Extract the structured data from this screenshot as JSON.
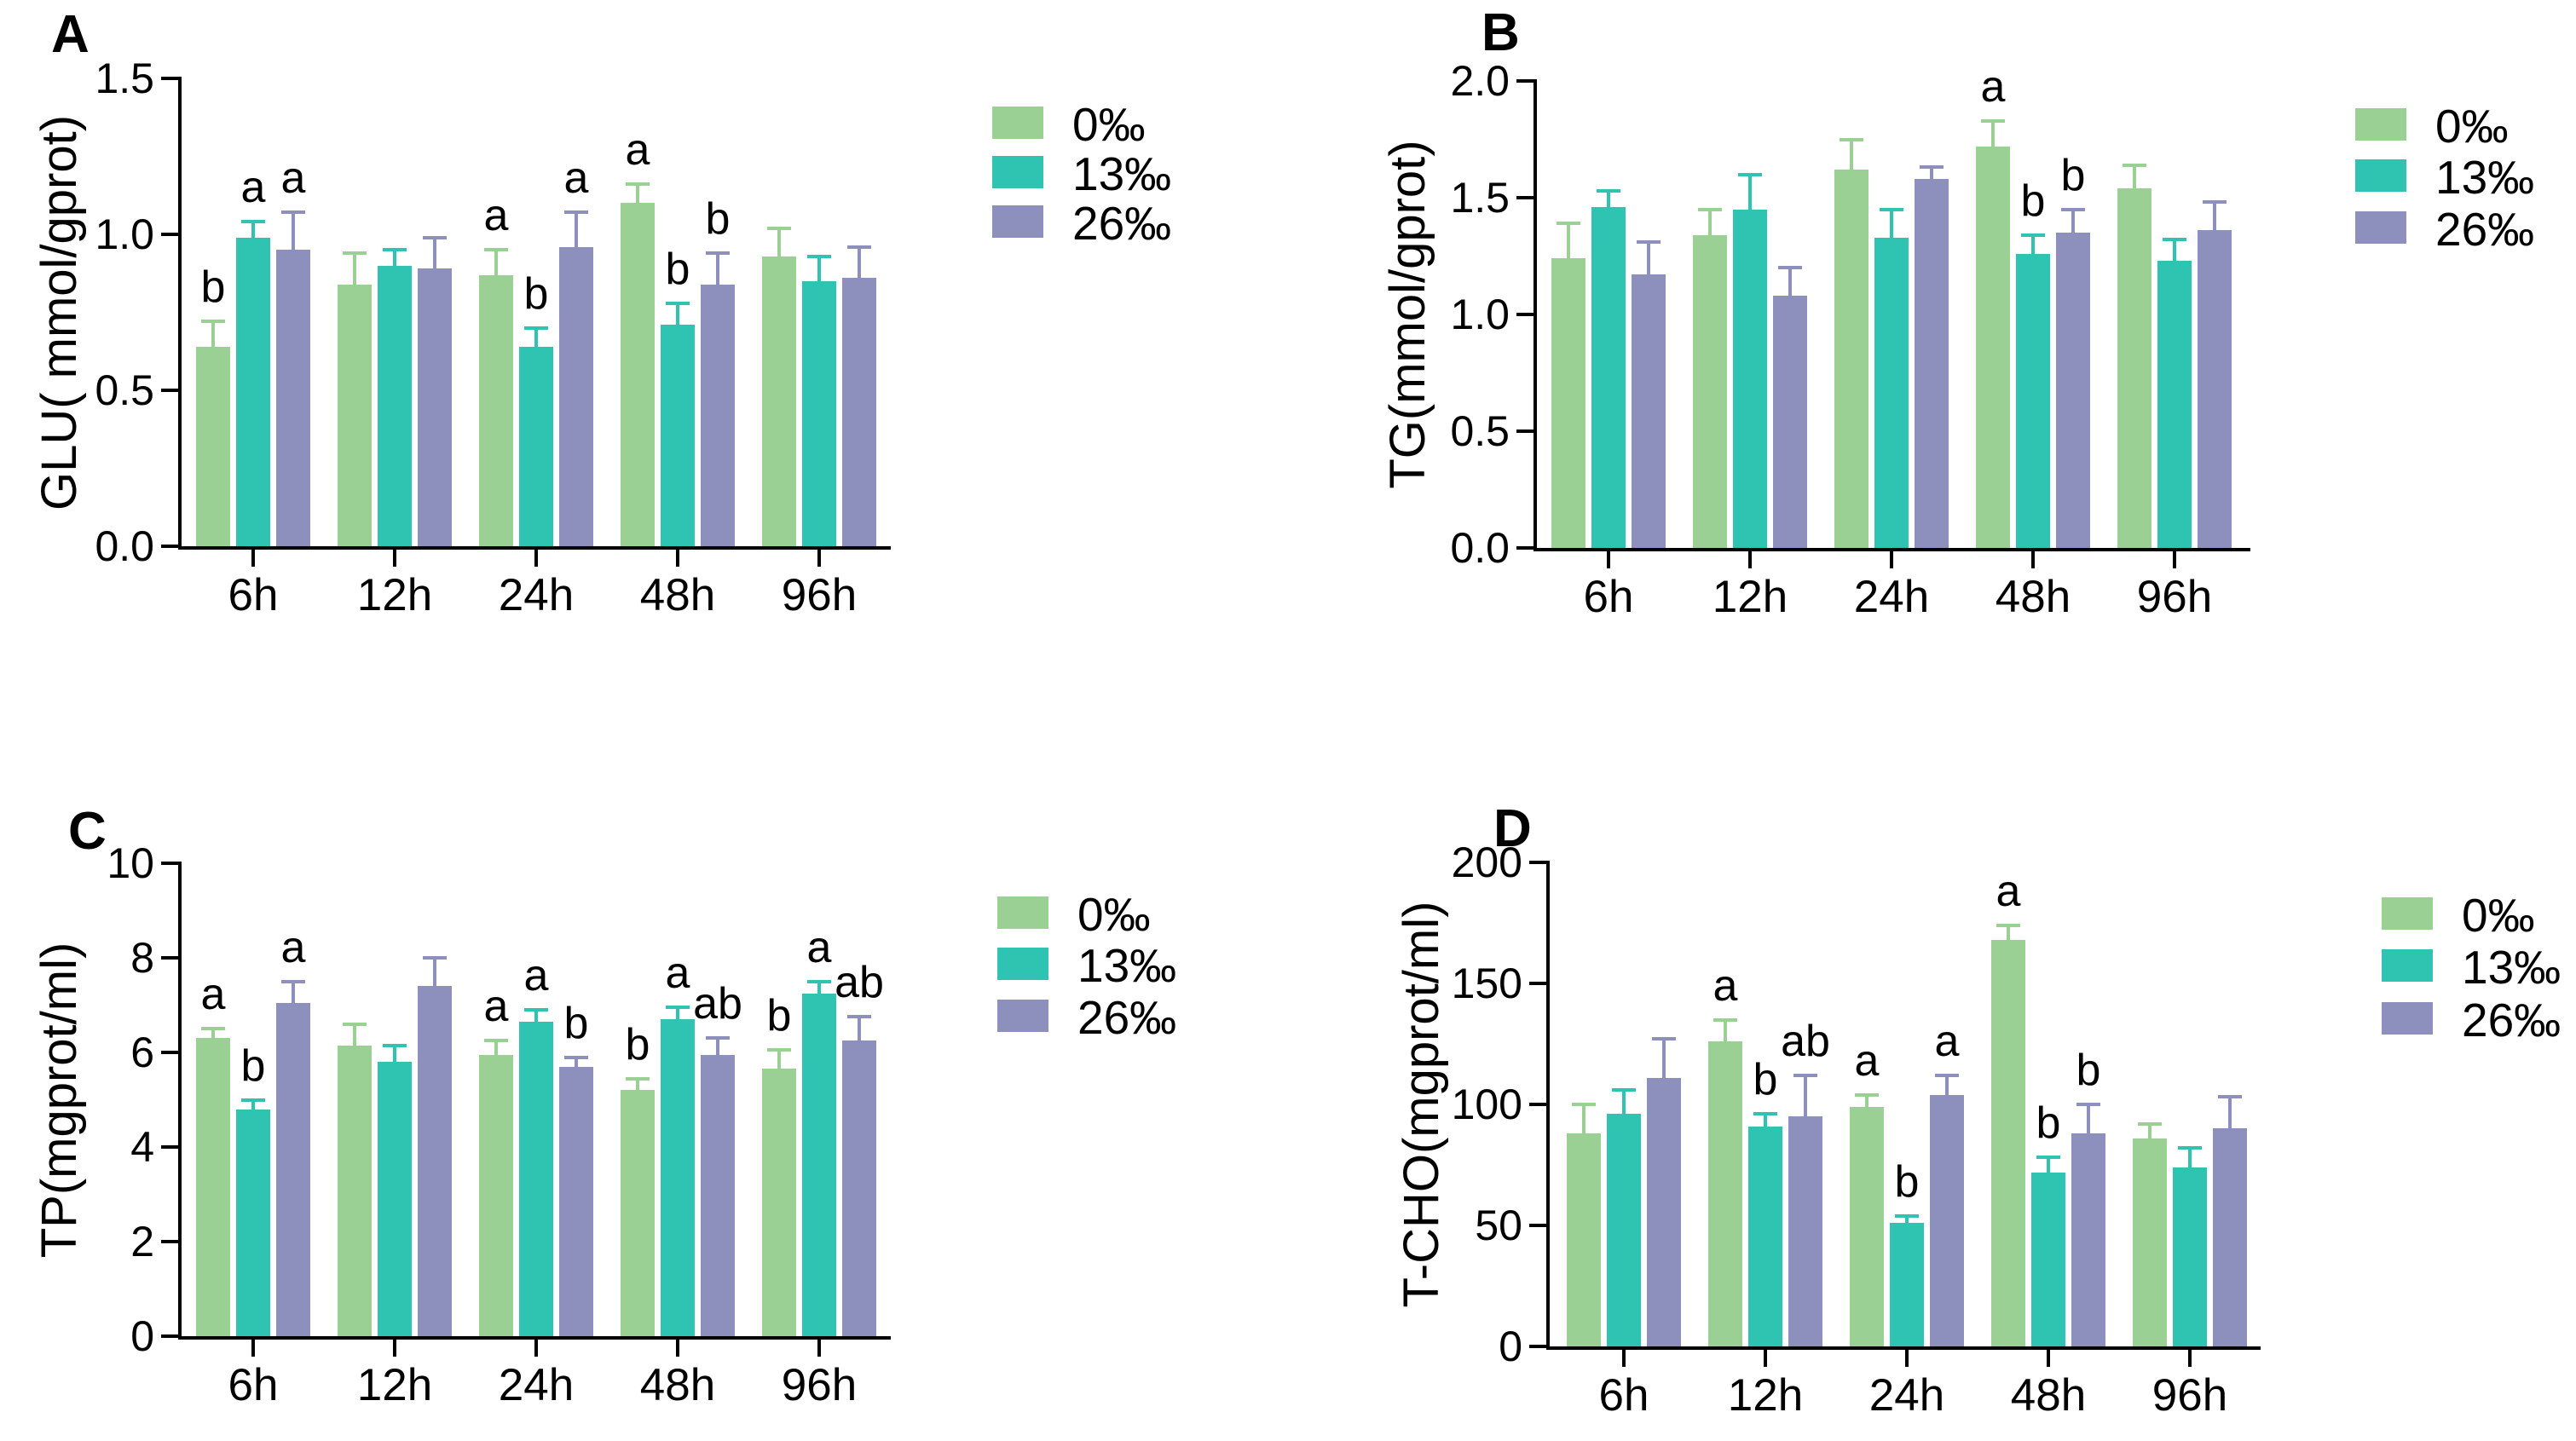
{
  "figure": {
    "background": "#ffffff"
  },
  "palette": {
    "green": "#9ad094",
    "teal": "#2fc4b2",
    "purple": "#8d8fbc",
    "axis": "#000000"
  },
  "legend_labels": [
    "0‰",
    "13‰",
    "26‰"
  ],
  "chart_data": [
    {
      "id": "A",
      "type": "bar",
      "panel_label": "A",
      "ylabel": "GLU( mmol/gprot)",
      "xlabel": "",
      "ylim": [
        0,
        1.5
      ],
      "yticks": [
        "0.0",
        "0.5",
        "1.0",
        "1.5"
      ],
      "categories": [
        "6h",
        "12h",
        "24h",
        "48h",
        "96h"
      ],
      "legend": [
        {
          "label": "0‰",
          "color": "#9ad094"
        },
        {
          "label": "13‰",
          "color": "#2fc4b2"
        },
        {
          "label": "26‰",
          "color": "#8d8fbc"
        }
      ],
      "series": [
        {
          "name": "0‰",
          "color": "#9ad094",
          "values": [
            0.64,
            0.84,
            0.87,
            1.1,
            0.93
          ],
          "errors": [
            0.08,
            0.1,
            0.08,
            0.06,
            0.09
          ],
          "letters": [
            "b",
            "",
            "a",
            "a",
            ""
          ]
        },
        {
          "name": "13‰",
          "color": "#2fc4b2",
          "values": [
            0.99,
            0.9,
            0.64,
            0.71,
            0.85
          ],
          "errors": [
            0.05,
            0.05,
            0.06,
            0.07,
            0.08
          ],
          "letters": [
            "a",
            "",
            "b",
            "b",
            ""
          ]
        },
        {
          "name": "26‰",
          "color": "#8d8fbc",
          "values": [
            0.95,
            0.89,
            0.96,
            0.84,
            0.86
          ],
          "errors": [
            0.12,
            0.1,
            0.11,
            0.1,
            0.1
          ],
          "letters": [
            "a",
            "",
            "a",
            "b",
            ""
          ]
        }
      ]
    },
    {
      "id": "B",
      "type": "bar",
      "panel_label": "B",
      "ylabel": "TG(mmol/gprot)",
      "xlabel": "",
      "ylim": [
        0,
        2.0
      ],
      "yticks": [
        "0.0",
        "0.5",
        "1.0",
        "1.5",
        "2.0"
      ],
      "categories": [
        "6h",
        "12h",
        "24h",
        "48h",
        "96h"
      ],
      "legend": [
        {
          "label": "0‰",
          "color": "#9ad094"
        },
        {
          "label": "13‰",
          "color": "#2fc4b2"
        },
        {
          "label": "26‰",
          "color": "#8d8fbc"
        }
      ],
      "series": [
        {
          "name": "0‰",
          "color": "#9ad094",
          "values": [
            1.24,
            1.34,
            1.62,
            1.72,
            1.54
          ],
          "errors": [
            0.15,
            0.11,
            0.13,
            0.11,
            0.1
          ],
          "letters": [
            "",
            "",
            "",
            "a",
            ""
          ]
        },
        {
          "name": "13‰",
          "color": "#2fc4b2",
          "values": [
            1.46,
            1.45,
            1.33,
            1.26,
            1.23
          ],
          "errors": [
            0.07,
            0.15,
            0.12,
            0.08,
            0.09
          ],
          "letters": [
            "",
            "",
            "",
            "b",
            ""
          ]
        },
        {
          "name": "26‰",
          "color": "#8d8fbc",
          "values": [
            1.17,
            1.08,
            1.58,
            1.35,
            1.36
          ],
          "errors": [
            0.14,
            0.12,
            0.05,
            0.1,
            0.12
          ],
          "letters": [
            "",
            "",
            "",
            "b",
            ""
          ]
        }
      ]
    },
    {
      "id": "C",
      "type": "bar",
      "panel_label": "C",
      "ylabel": "TP(mgprot/ml)",
      "xlabel": "",
      "ylim": [
        0,
        10
      ],
      "yticks": [
        "0",
        "2",
        "4",
        "6",
        "8",
        "10"
      ],
      "categories": [
        "6h",
        "12h",
        "24h",
        "48h",
        "96h"
      ],
      "legend": [
        {
          "label": "0‰",
          "color": "#9ad094"
        },
        {
          "label": "13‰",
          "color": "#2fc4b2"
        },
        {
          "label": "26‰",
          "color": "#8d8fbc"
        }
      ],
      "series": [
        {
          "name": "0‰",
          "color": "#9ad094",
          "values": [
            6.3,
            6.15,
            5.95,
            5.2,
            5.65
          ],
          "errors": [
            0.2,
            0.45,
            0.3,
            0.25,
            0.4
          ],
          "letters": [
            "a",
            "",
            "a",
            "b",
            "b"
          ]
        },
        {
          "name": "13‰",
          "color": "#2fc4b2",
          "values": [
            4.8,
            5.8,
            6.65,
            6.7,
            7.25
          ],
          "errors": [
            0.2,
            0.35,
            0.25,
            0.25,
            0.25
          ],
          "letters": [
            "b",
            "",
            "a",
            "a",
            "a"
          ]
        },
        {
          "name": "26‰",
          "color": "#8d8fbc",
          "values": [
            7.05,
            7.4,
            5.7,
            5.95,
            6.25
          ],
          "errors": [
            0.45,
            0.6,
            0.2,
            0.35,
            0.5
          ],
          "letters": [
            "a",
            "",
            "b",
            "ab",
            "ab"
          ]
        }
      ]
    },
    {
      "id": "D",
      "type": "bar",
      "panel_label": "D",
      "ylabel": "T-CHO(mgprot/ml)",
      "xlabel": "",
      "ylim": [
        0,
        200
      ],
      "yticks": [
        "0",
        "50",
        "100",
        "150",
        "200"
      ],
      "categories": [
        "6h",
        "12h",
        "24h",
        "48h",
        "96h"
      ],
      "legend": [
        {
          "label": "0‰",
          "color": "#9ad094"
        },
        {
          "label": "13‰",
          "color": "#2fc4b2"
        },
        {
          "label": "26‰",
          "color": "#8d8fbc"
        }
      ],
      "series": [
        {
          "name": "0‰",
          "color": "#9ad094",
          "values": [
            88,
            126,
            99,
            168,
            86
          ],
          "errors": [
            12,
            9,
            5,
            6,
            6
          ],
          "letters": [
            "",
            "a",
            "a",
            "a",
            ""
          ]
        },
        {
          "name": "13‰",
          "color": "#2fc4b2",
          "values": [
            96,
            91,
            51,
            72,
            74
          ],
          "errors": [
            10,
            5,
            3,
            6,
            8
          ],
          "letters": [
            "",
            "b",
            "b",
            "b",
            ""
          ]
        },
        {
          "name": "26‰",
          "color": "#8d8fbc",
          "values": [
            111,
            95,
            104,
            88,
            90
          ],
          "errors": [
            16,
            17,
            8,
            12,
            13
          ],
          "letters": [
            "",
            "ab",
            "a",
            "b",
            ""
          ]
        }
      ]
    }
  ]
}
